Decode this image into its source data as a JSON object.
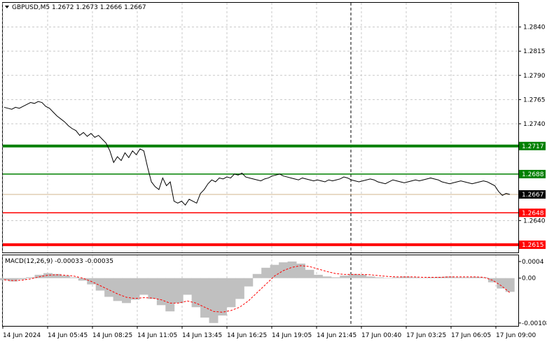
{
  "header": {
    "symbol_line": "GBPUSD,M5  1.2672 1.2673 1.2666 1.2667"
  },
  "price_axis": {
    "ticks": [
      "1.2840",
      "1.2815",
      "1.2790",
      "1.2765",
      "1.2740",
      "1.2717",
      "1.2688",
      "1.2667",
      "1.2648",
      "1.2640",
      "1.2615"
    ],
    "range": [
      1.2607,
      1.2865
    ]
  },
  "levels": [
    {
      "value": 1.2717,
      "label": "1.2717",
      "color": "#008000",
      "style": "thick"
    },
    {
      "value": 1.2688,
      "label": "1.2688",
      "color": "#008000",
      "style": "thin"
    },
    {
      "value": 1.2648,
      "label": "1.2648",
      "color": "#ff0000",
      "style": "thin"
    },
    {
      "value": 1.2615,
      "label": "1.2615",
      "color": "#ff0000",
      "style": "thick"
    }
  ],
  "current_price": {
    "value": 1.2667,
    "label": "1.2667"
  },
  "time_axis": {
    "labels": [
      "14 Jun 2024",
      "14 Jun 05:45",
      "14 Jun 08:25",
      "14 Jun 11:05",
      "14 Jun 13:45",
      "14 Jun 16:25",
      "14 Jun 19:05",
      "14 Jun 21:45",
      "17 Jun 00:40",
      "17 Jun 03:25",
      "17 Jun 06:05",
      "17 Jun 09:00"
    ]
  },
  "macd": {
    "title": "MACD(12,26,9) -0.00033 -0.00035",
    "ticks": [
      "0.0004",
      "0.00",
      "-0.00108"
    ],
    "range": [
      -0.00115,
      0.00055
    ]
  },
  "chart_data": {
    "type": "line",
    "series": [
      {
        "values": [
          1.2757,
          1.2756,
          1.2755,
          1.2757,
          1.2756,
          1.2758,
          1.276,
          1.2762,
          1.2761,
          1.2763,
          1.2762,
          1.2758,
          1.2756,
          1.2752,
          1.2748,
          1.2745,
          1.2742,
          1.2738,
          1.2735,
          1.2733,
          1.2728,
          1.2731,
          1.2727,
          1.273,
          1.2726,
          1.2728,
          1.2724,
          1.272,
          1.2712,
          1.27,
          1.2706,
          1.2702,
          1.271,
          1.2705,
          1.2712,
          1.2708,
          1.2714,
          1.2712,
          1.2695,
          1.268,
          1.2675,
          1.2672,
          1.2684,
          1.2676,
          1.268,
          1.266,
          1.2658,
          1.266,
          1.2656,
          1.2662,
          1.266,
          1.2658,
          1.2668,
          1.2672,
          1.2678,
          1.2682,
          1.268,
          1.2684,
          1.2683,
          1.2685,
          1.2684,
          1.2688,
          1.2687,
          1.2689,
          1.2685,
          1.2684,
          1.2683,
          1.2682,
          1.2681,
          1.2683,
          1.2684,
          1.2686,
          1.2687,
          1.2688,
          1.2686,
          1.2685,
          1.2684,
          1.2683,
          1.2682,
          1.2684,
          1.2683,
          1.2682,
          1.2681,
          1.2682,
          1.2681,
          1.268,
          1.2682,
          1.2681,
          1.2682,
          1.2683,
          1.2685,
          1.2684,
          1.2682,
          1.2681,
          1.268,
          1.2681,
          1.2682,
          1.2683,
          1.2682,
          1.268,
          1.2679,
          1.2678,
          1.268,
          1.2682,
          1.2681,
          1.268,
          1.2679,
          1.268,
          1.2681,
          1.2682,
          1.2681,
          1.2682,
          1.2683,
          1.2684,
          1.2683,
          1.2682,
          1.268,
          1.2679,
          1.2678,
          1.2679,
          1.268,
          1.2681,
          1.268,
          1.2679,
          1.2678,
          1.2679,
          1.268,
          1.2681,
          1.268,
          1.2678,
          1.2676,
          1.267,
          1.2666,
          1.2668,
          1.2667
        ]
      },
      {
        "name": "MACD",
        "values": [
          -5e-05,
          -8e-05,
          -3e-05,
          2e-05,
          8e-05,
          0.00012,
          0.0001,
          6e-05,
          2e-05,
          -6e-05,
          -0.00015,
          -0.0003,
          -0.00045,
          -0.00055,
          -0.0006,
          -0.00052,
          -0.0004,
          -0.0005,
          -0.00065,
          -0.0008,
          -0.0006,
          -0.0004,
          -0.0007,
          -0.00095,
          -0.00108,
          -0.0009,
          -0.0007,
          -0.0005,
          -0.0002,
          0.0001,
          0.00025,
          0.00032,
          0.00038,
          0.0004,
          0.00035,
          0.0002,
          8e-05,
          4e-05,
          2e-05,
          6e-05,
          0.0001,
          8e-05,
          4e-05,
          2e-05,
          0.0,
          2e-05,
          4e-05,
          2e-05,
          0.0,
          2e-05,
          3e-05,
          4e-05,
          2e-05,
          2e-05,
          3e-05,
          2e-05,
          -0.0001,
          -0.00025,
          -0.00033
        ]
      },
      {
        "name": "Signal",
        "values": [
          -4e-05,
          -6e-05,
          -5e-05,
          -2e-05,
          3e-05,
          7e-05,
          8e-05,
          7e-05,
          5e-05,
          0.0,
          -8e-05,
          -0.00018,
          -0.00028,
          -0.00038,
          -0.00046,
          -0.00049,
          -0.00047,
          -0.00048,
          -0.00052,
          -0.0006,
          -0.0006,
          -0.00055,
          -0.0006,
          -0.0007,
          -0.0008,
          -0.00082,
          -0.00078,
          -0.0007,
          -0.00055,
          -0.00035,
          -0.00015,
          5e-05,
          0.00018,
          0.00026,
          0.0003,
          0.00028,
          0.00022,
          0.00016,
          0.00011,
          9e-05,
          9e-05,
          9e-05,
          8e-05,
          6e-05,
          4e-05,
          3e-05,
          3e-05,
          3e-05,
          2e-05,
          2e-05,
          2e-05,
          3e-05,
          3e-05,
          3e-05,
          3e-05,
          2e-05,
          -5e-05,
          -0.00018,
          -0.00035
        ]
      }
    ],
    "colors": {
      "price": "#000000",
      "macd_hist": "#c0c0c0",
      "signal": "#ff0000",
      "grid": "#c8c8c8",
      "vline": "#000000"
    },
    "grid": true
  }
}
